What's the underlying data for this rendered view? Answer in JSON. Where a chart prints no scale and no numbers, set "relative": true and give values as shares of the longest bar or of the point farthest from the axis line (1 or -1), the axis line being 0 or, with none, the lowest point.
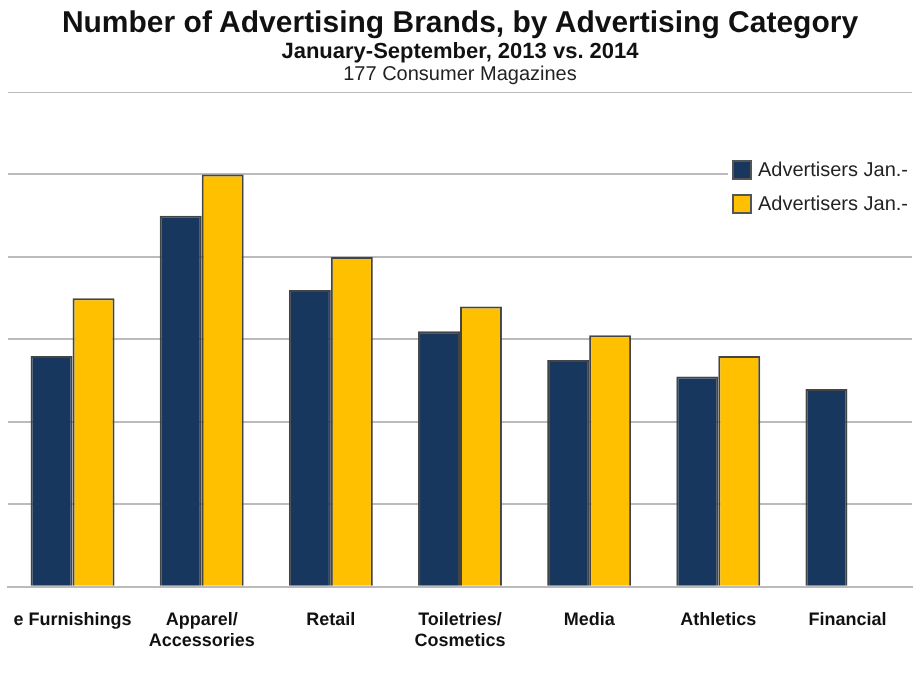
{
  "chart_data": {
    "type": "bar",
    "title": "Number of Advertising Brands, by Advertising Category",
    "subtitle": "January-September, 2013 vs. 2014",
    "annotations": [
      "177 Consumer Magazines"
    ],
    "categories": [
      "e Furnishings",
      "Apparel/Accessories",
      "Retail",
      "Toiletries/Cosmetics",
      "Media",
      "Athletics",
      "Financial"
    ],
    "relative": true,
    "grid": "y",
    "legend": "top right",
    "series": [
      {
        "name": "Advertisers Jan.-",
        "color": "#17375e",
        "values": [
          0.56,
          0.9,
          0.72,
          0.62,
          0.55,
          0.51,
          0.48
        ]
      },
      {
        "name": "Advertisers Jan.-",
        "color": "#ffc000",
        "values": [
          0.7,
          1,
          0.8,
          0.68,
          0.61,
          0.56,
          null
        ]
      }
    ]
  }
}
